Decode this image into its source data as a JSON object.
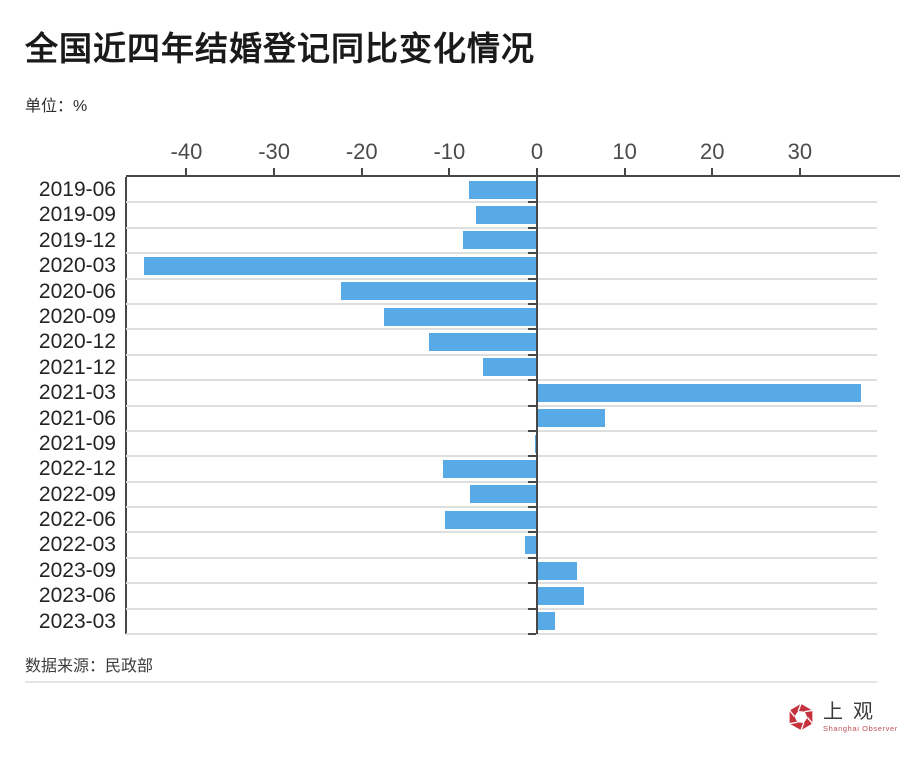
{
  "title": "全国近四年结婚登记同比变化情况",
  "unit_label": "单位：%",
  "source_label": "数据来源：民政部",
  "logo": {
    "cn": "上观",
    "en": "Shanghai Observer"
  },
  "colors": {
    "bar": "#58AAE7",
    "axis": "#474747",
    "grid": "#DEDEDE",
    "logo_red": "#C5323D"
  },
  "chart_data": {
    "type": "bar",
    "orientation": "horizontal",
    "title": "全国近四年结婚登记同比变化情况",
    "unit": "%",
    "source": "民政部",
    "categories": [
      "2019-06",
      "2019-09",
      "2019-12",
      "2020-03",
      "2020-06",
      "2020-09",
      "2020-12",
      "2021-12",
      "2021-03",
      "2021-06",
      "2021-09",
      "2022-12",
      "2022-09",
      "2022-06",
      "2022-03",
      "2023-09",
      "2023-06",
      "2023-03"
    ],
    "values": [
      -7.7,
      -6.8,
      -8.3,
      -44.7,
      -22.3,
      -17.4,
      -12.2,
      -6.1,
      36.9,
      7.6,
      -0.1,
      -10.6,
      -7.5,
      -10.4,
      -1.2,
      4.5,
      5.3,
      1.9
    ],
    "x_ticks": [
      -40,
      -30,
      -20,
      -10,
      0,
      10,
      20,
      30
    ],
    "xlim": [
      -46.9,
      38.8
    ],
    "grid": true,
    "legend": false
  }
}
